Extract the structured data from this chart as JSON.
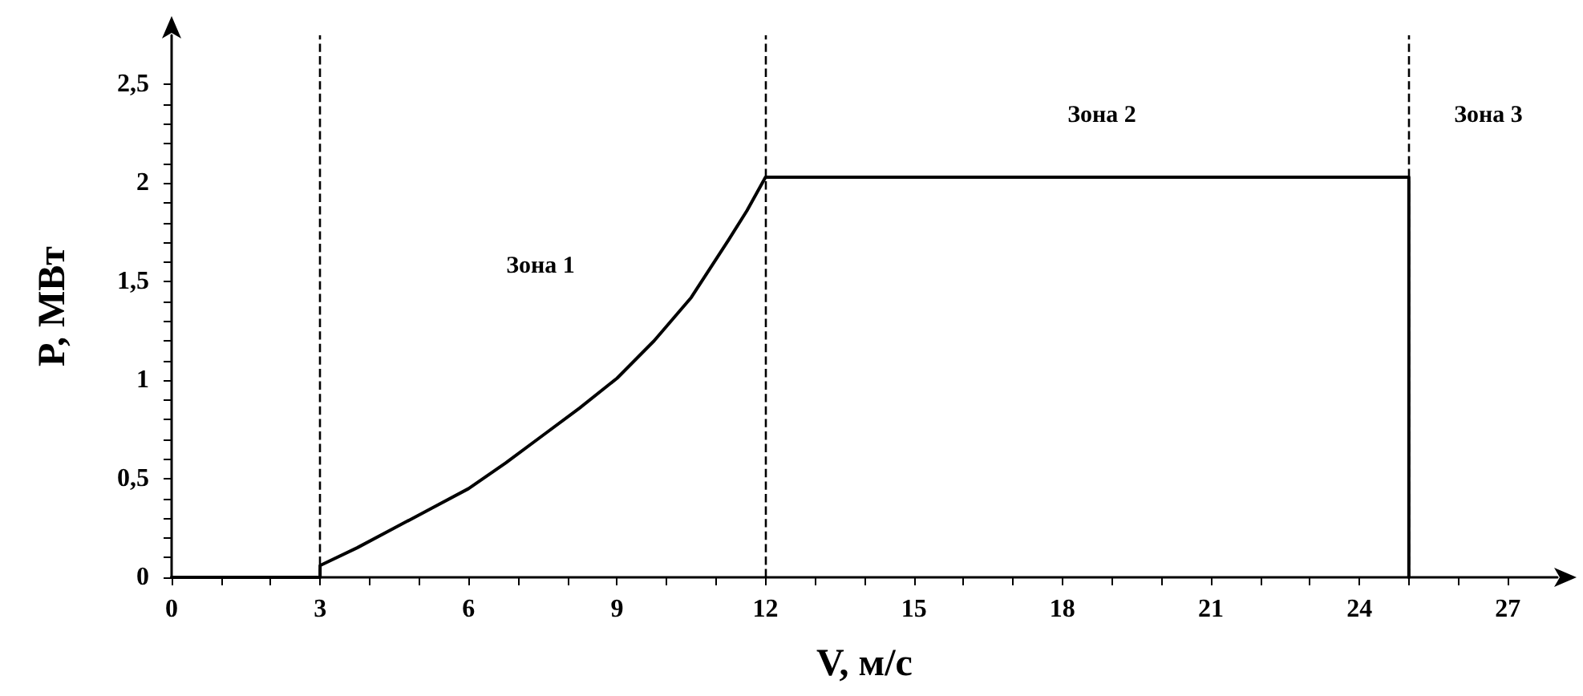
{
  "chart_data": {
    "type": "line",
    "xlabel": "V, м/с",
    "ylabel": "P, МВт",
    "x": [
      0,
      3,
      3,
      3.75,
      4.5,
      5.25,
      6,
      6.75,
      7.5,
      8.25,
      9,
      9.75,
      10.5,
      11.25,
      11.625,
      12,
      25,
      25
    ],
    "series": [
      {
        "color": "#000000",
        "values": [
          0,
          0,
          0.06,
          0.15,
          0.25,
          0.35,
          0.45,
          0.58,
          0.72,
          0.86,
          1.01,
          1.2,
          1.42,
          1.71,
          1.86,
          2.03,
          2.03,
          0
        ]
      }
    ],
    "xlim": [
      0,
      28
    ],
    "ylim": [
      0,
      2.75
    ],
    "xticks": [
      0,
      {
        "value": 1,
        "label": null
      },
      {
        "value": 2,
        "label": null
      },
      3,
      {
        "value": 4,
        "label": null
      },
      {
        "value": 5,
        "label": null
      },
      6,
      {
        "value": 7,
        "label": null
      },
      {
        "value": 8,
        "label": null
      },
      9,
      {
        "value": 10,
        "label": null
      },
      {
        "value": 11,
        "label": null
      },
      12,
      {
        "value": 13,
        "label": null
      },
      {
        "value": 14,
        "label": null
      },
      15,
      {
        "value": 16,
        "label": null
      },
      {
        "value": 17,
        "label": null
      },
      18,
      {
        "value": 19,
        "label": null
      },
      {
        "value": 20,
        "label": null
      },
      21,
      {
        "value": 22,
        "label": null
      },
      {
        "value": 23,
        "label": null
      },
      24,
      {
        "value": 25,
        "label": null
      },
      {
        "value": 26,
        "label": null
      },
      27
    ],
    "yticks": [
      0,
      {
        "value": 0.1,
        "label": null
      },
      {
        "value": 0.2,
        "label": null
      },
      {
        "value": 0.3,
        "label": null
      },
      {
        "value": 0.4,
        "label": null
      },
      {
        "value": 0.5,
        "label": "0,5"
      },
      {
        "value": 0.6,
        "label": null
      },
      {
        "value": 0.7,
        "label": null
      },
      {
        "value": 0.8,
        "label": null
      },
      {
        "value": 0.9,
        "label": null
      },
      1,
      {
        "value": 1.1,
        "label": null
      },
      {
        "value": 1.2,
        "label": null
      },
      {
        "value": 1.3,
        "label": null
      },
      {
        "value": 1.4,
        "label": null
      },
      {
        "value": 1.5,
        "label": "1,5"
      },
      {
        "value": 1.6,
        "label": null
      },
      {
        "value": 1.7,
        "label": null
      },
      {
        "value": 1.8,
        "label": null
      },
      {
        "value": 1.9,
        "label": null
      },
      2,
      {
        "value": 2.1,
        "label": null
      },
      {
        "value": 2.2,
        "label": null
      },
      {
        "value": 2.3,
        "label": null
      },
      {
        "value": 2.4,
        "label": null
      },
      {
        "value": 2.5,
        "label": "2,5"
      }
    ],
    "ref_lines": [
      {
        "axis": "x",
        "value": 3,
        "color": "#000000",
        "line_style": "dashed"
      },
      {
        "axis": "x",
        "value": 12,
        "color": "#000000",
        "line_style": "dashed"
      },
      {
        "axis": "x",
        "value": 25,
        "color": "#000000",
        "line_style": "dashed"
      }
    ],
    "annotations": [
      "Зона 1",
      "Зона 2",
      "Зона 3"
    ],
    "grid": false,
    "marker": "none",
    "line_style": "solid"
  }
}
